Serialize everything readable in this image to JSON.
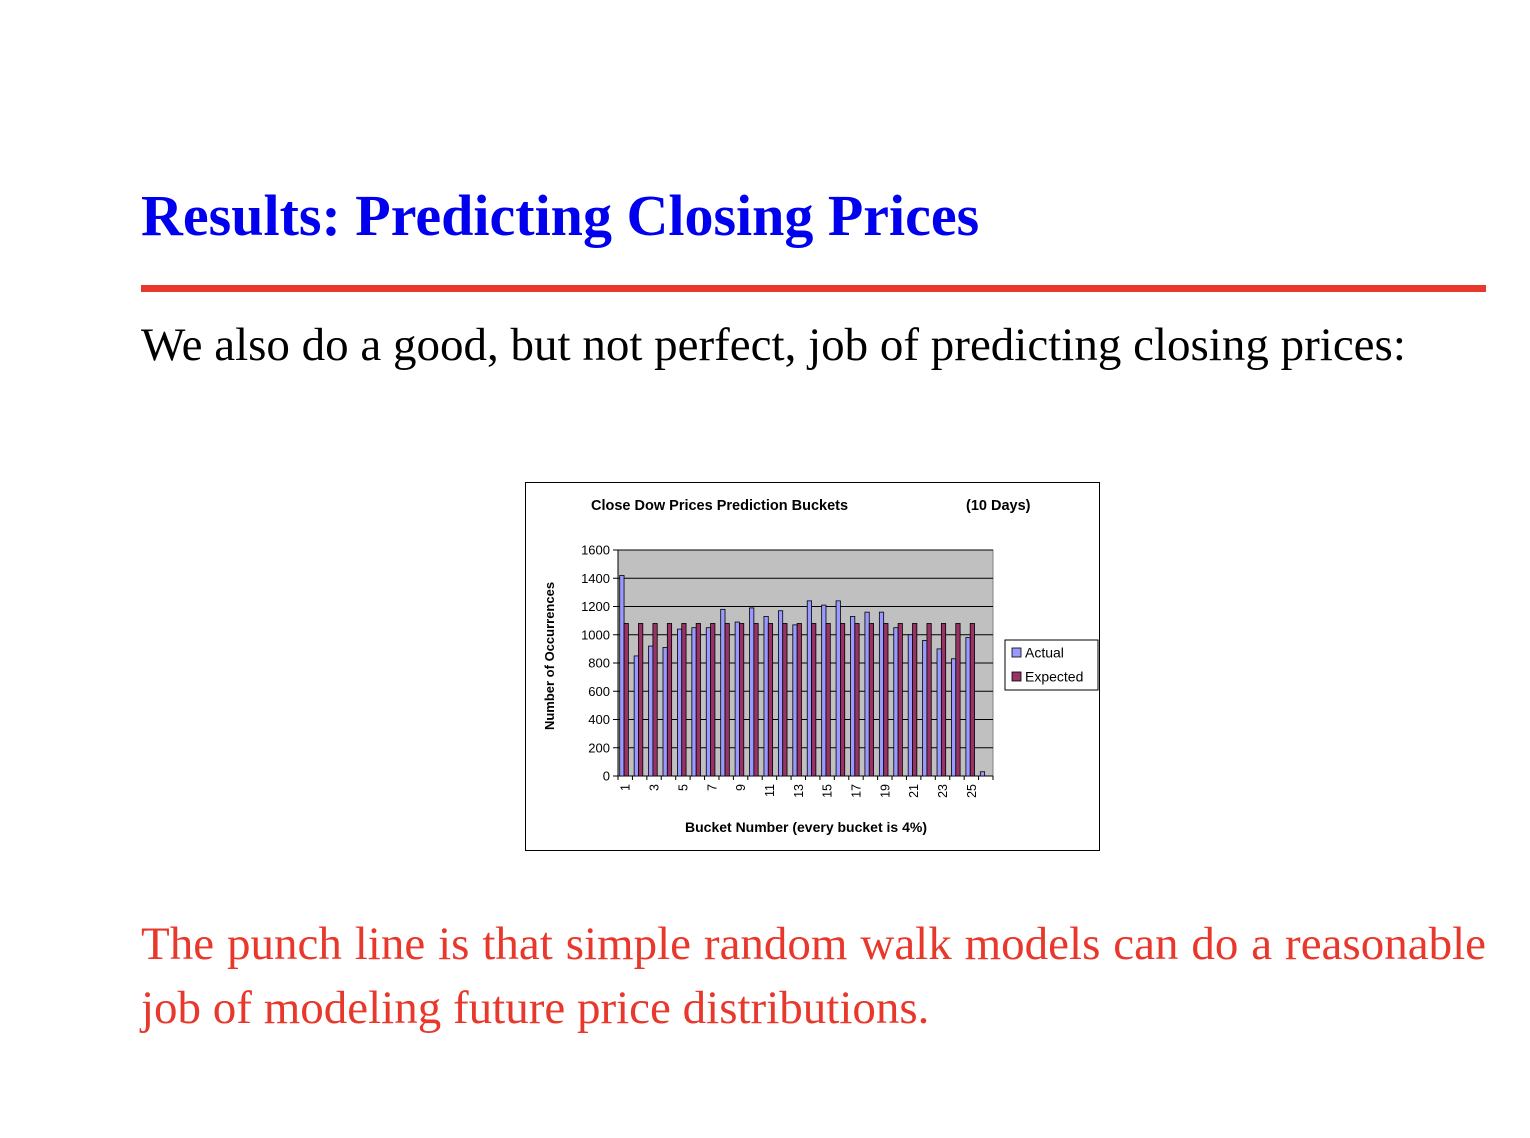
{
  "slide": {
    "title": "Results: Predicting Closing Prices",
    "intro": "We also do a good, but not perfect, job of predicting closing prices:",
    "punch_line": "The punch line is that simple random walk models can do a reasonable job of modeling future price distributions."
  },
  "colors": {
    "title": "#0000ee",
    "rule": "#e8382c",
    "punch": "#e8382c",
    "actual": "#9999ff",
    "expected": "#993366",
    "plot_bg": "#c0c0c0"
  },
  "chart_data": {
    "type": "bar",
    "title": "Close Dow Prices Prediction Buckets",
    "subtitle": "(10 Days)",
    "xlabel": "Bucket Number (every bucket is 4%)",
    "ylabel": "Number of Occurrences",
    "ylim": [
      0,
      1600
    ],
    "yticks": [
      "0",
      "200",
      "400",
      "600",
      "800",
      "1000",
      "1200",
      "1400",
      "1600"
    ],
    "grid": true,
    "legend_position": "right",
    "categories": [
      1,
      2,
      3,
      4,
      5,
      6,
      7,
      8,
      9,
      10,
      11,
      12,
      13,
      14,
      15,
      16,
      17,
      18,
      19,
      20,
      21,
      22,
      23,
      24,
      25,
      26
    ],
    "xtick_labels": [
      "1",
      "3",
      "5",
      "7",
      "9",
      "11",
      "13",
      "15",
      "17",
      "19",
      "21",
      "23",
      "25"
    ],
    "series": [
      {
        "name": "Actual",
        "values": [
          1420,
          850,
          920,
          910,
          1040,
          1050,
          1050,
          1180,
          1090,
          1190,
          1130,
          1170,
          1070,
          1240,
          1210,
          1240,
          1130,
          1160,
          1160,
          1050,
          1000,
          960,
          900,
          830,
          980,
          30
        ]
      },
      {
        "name": "Expected",
        "values": [
          1080,
          1080,
          1080,
          1080,
          1080,
          1080,
          1080,
          1080,
          1080,
          1080,
          1080,
          1080,
          1080,
          1080,
          1080,
          1080,
          1080,
          1080,
          1080,
          1080,
          1080,
          1080,
          1080,
          1080,
          1080,
          0
        ]
      }
    ]
  }
}
